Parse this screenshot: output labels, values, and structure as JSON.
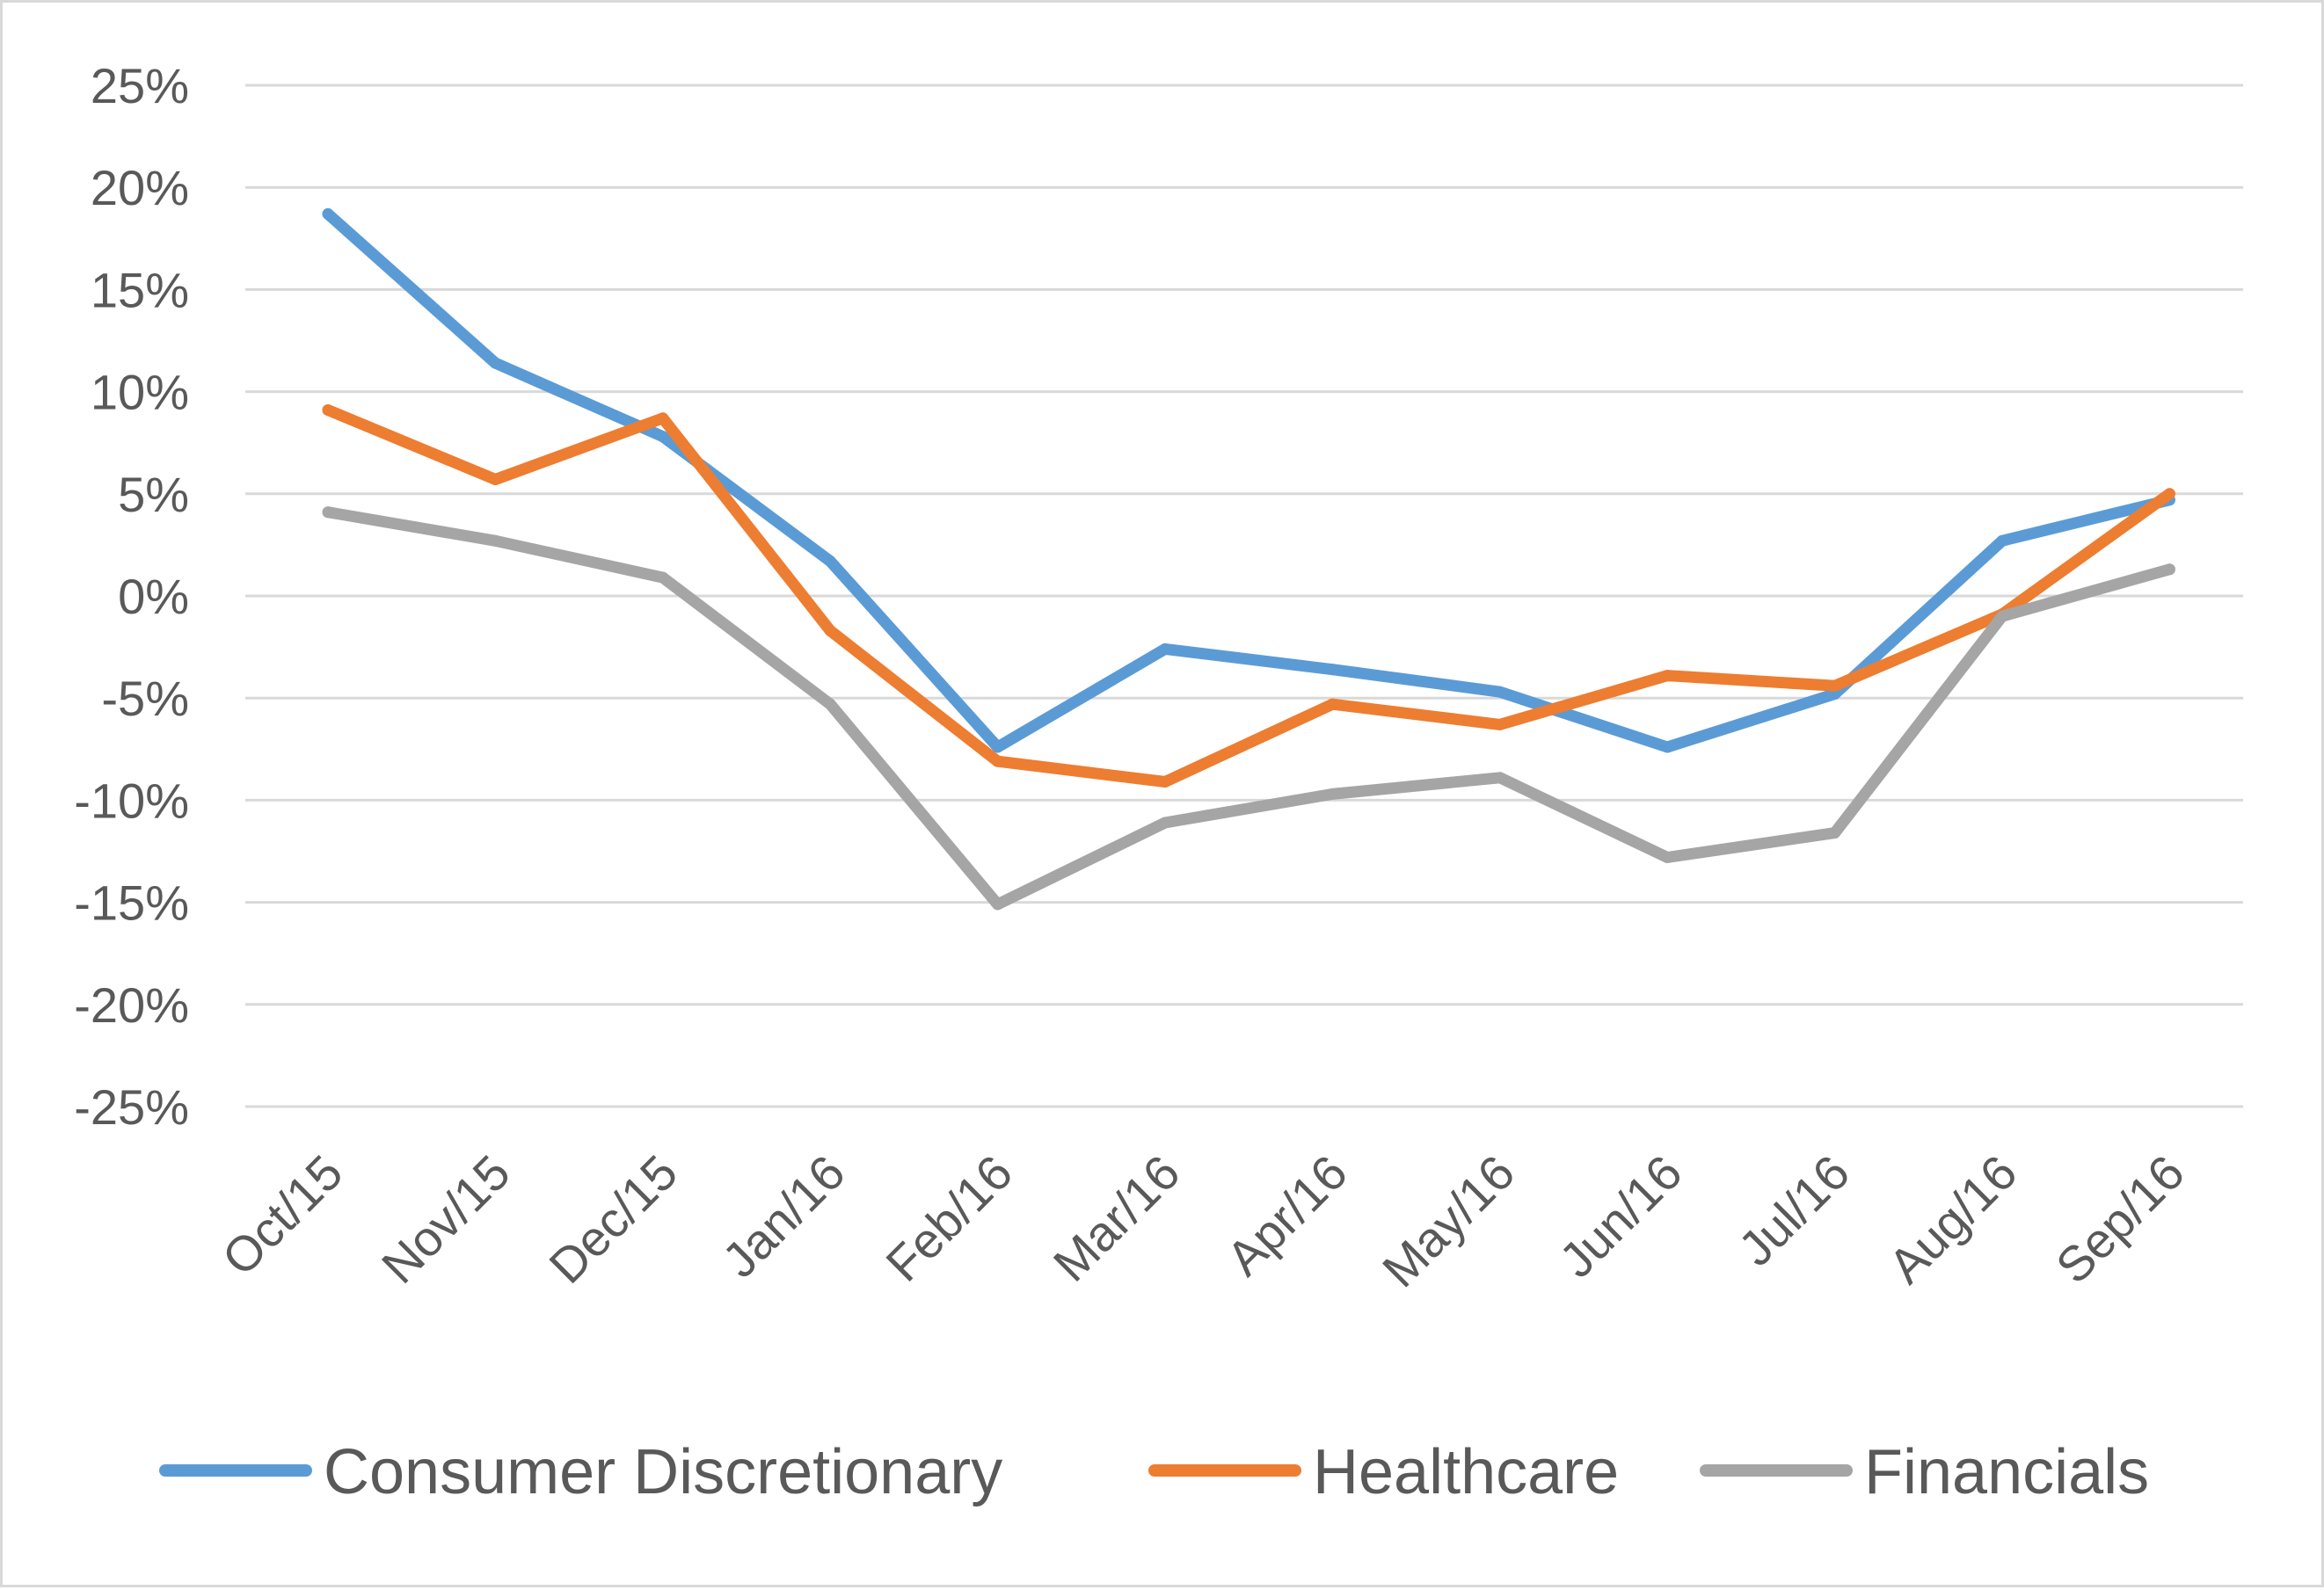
{
  "chart_data": {
    "type": "line",
    "title": "",
    "xlabel": "",
    "ylabel": "",
    "categories": [
      "Oct/15",
      "Nov/15",
      "Dec/15",
      "Jan/16",
      "Feb/16",
      "Mar/16",
      "Apr/16",
      "May/16",
      "Jun/16",
      "Jul/16",
      "Aug/16",
      "Sep/16"
    ],
    "ylim": [
      -25,
      25
    ],
    "yticks": [
      25,
      20,
      15,
      10,
      5,
      0,
      -5,
      -10,
      -15,
      -20,
      -25
    ],
    "ytick_labels": [
      "25%",
      "20%",
      "15%",
      "10%",
      "5%",
      "0%",
      "-5%",
      "-10%",
      "-15%",
      "-20%",
      "-25%"
    ],
    "grid": true,
    "legend_position": "bottom",
    "series": [
      {
        "name": "Consumer Discretionary",
        "color": "#5B9BD5",
        "values": [
          18.7,
          11.4,
          7.8,
          1.7,
          -7.4,
          -2.6,
          -3.6,
          -4.7,
          -7.4,
          -4.8,
          2.7,
          4.7
        ]
      },
      {
        "name": "Healthcare",
        "color": "#ED7D31",
        "values": [
          9.1,
          5.7,
          8.7,
          -1.7,
          -8.1,
          -9.1,
          -5.3,
          -6.3,
          -3.9,
          -4.4,
          -0.9,
          5.0
        ]
      },
      {
        "name": "Financials",
        "color": "#A5A5A5",
        "values": [
          4.1,
          2.7,
          0.9,
          -5.3,
          -15.1,
          -11.1,
          -9.7,
          -8.9,
          -12.8,
          -11.6,
          -1.0,
          1.3
        ]
      }
    ]
  }
}
